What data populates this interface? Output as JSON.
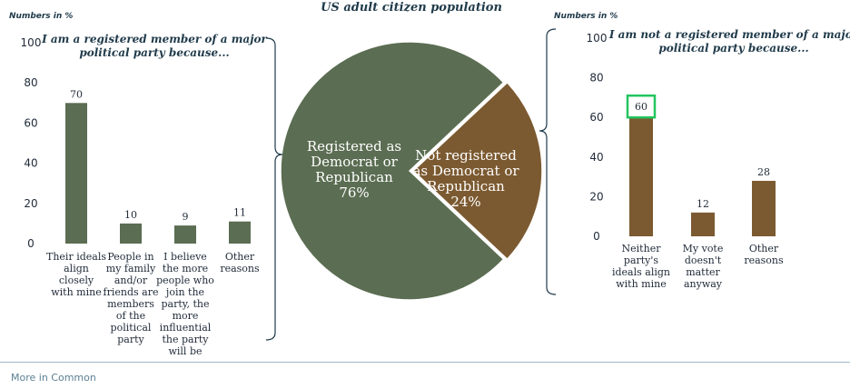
{
  "center_title": "US adult citizen population",
  "footer": "More in Common",
  "colors": {
    "green": "#5b6d52",
    "brown": "#7c5a31",
    "highlight": "#22c55e",
    "bracket": "#1f3a4a"
  },
  "chart_data": [
    {
      "type": "bar",
      "title_lines": [
        "I am a registered member of a major",
        "political party because..."
      ],
      "unit_label": "Numbers in %",
      "ylim": [
        0,
        100
      ],
      "yticks": [
        0,
        20,
        40,
        60,
        80,
        100
      ],
      "categories": [
        [
          "Their ideals",
          "align",
          "closely",
          "with mine"
        ],
        [
          "People in",
          "my family",
          "and/or",
          "friends are",
          "members",
          "of the",
          "political",
          "party"
        ],
        [
          "I believe",
          "the more",
          "people who",
          "join the",
          "party, the",
          "more",
          "influential",
          "the party",
          "will be"
        ],
        [
          "Other",
          "reasons"
        ]
      ],
      "values": [
        70,
        10,
        9,
        11
      ],
      "color": "#5b6d52"
    },
    {
      "type": "pie",
      "slices": [
        {
          "label_lines": [
            "Registered as",
            "Democrat or",
            "Republican",
            "76%"
          ],
          "value": 76,
          "color": "#5b6d52"
        },
        {
          "label_lines": [
            "Not registered",
            "as Democrat or",
            "Republican",
            "24%"
          ],
          "value": 24,
          "color": "#7c5a31"
        }
      ]
    },
    {
      "type": "bar",
      "title_lines": [
        "I am not a registered member of a major",
        "political party because..."
      ],
      "unit_label": "Numbers in %",
      "ylim": [
        0,
        100
      ],
      "yticks": [
        0,
        20,
        40,
        60,
        80,
        100
      ],
      "categories": [
        [
          "Neither",
          "party's",
          "ideals align",
          "with mine"
        ],
        [
          "My vote",
          "doesn't",
          "matter",
          "anyway"
        ],
        [
          "Other",
          "reasons"
        ]
      ],
      "values": [
        60,
        12,
        28
      ],
      "highlight_index": 0,
      "color": "#7c5a31"
    }
  ]
}
